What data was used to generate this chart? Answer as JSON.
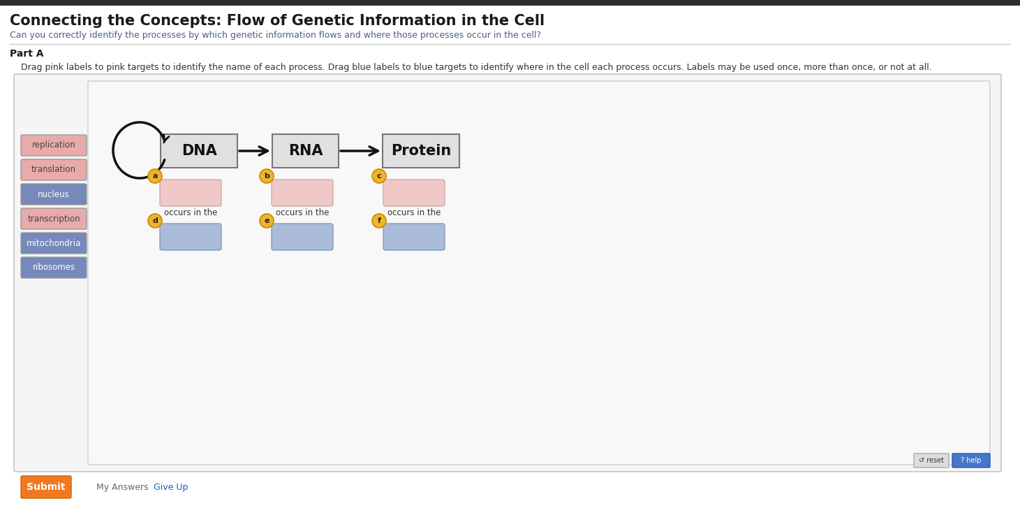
{
  "title": "Connecting the Concepts: Flow of Genetic Information in the Cell",
  "subtitle": "Can you correctly identify the processes by which genetic information flows and where those processes occur in the cell?",
  "part_label": "Part A",
  "instruction": "Drag pink labels to pink targets to identify the name of each process. Drag blue labels to blue targets to identify where in the cell each process occurs. Labels may be used once, more than once, or not at all.",
  "bg_color": "#ffffff",
  "title_color": "#1a1a1a",
  "subtitle_color": "#4a6080",
  "part_color": "#1a1a1a",
  "instruction_color": "#333333",
  "left_labels": [
    {
      "text": "replication",
      "color": "#e8aaaa",
      "text_color": "#444444"
    },
    {
      "text": "translation",
      "color": "#e8aaaa",
      "text_color": "#444444"
    },
    {
      "text": "nucleus",
      "color": "#7788bb",
      "text_color": "#ffffff"
    },
    {
      "text": "transcription",
      "color": "#e8aaaa",
      "text_color": "#444444"
    },
    {
      "text": "mitochondria",
      "color": "#7788bb",
      "text_color": "#ffffff"
    },
    {
      "text": "ribosomes",
      "color": "#7788bb",
      "text_color": "#ffffff"
    }
  ],
  "pink_box_color": "#f0c8c8",
  "pink_box_edge": "#ccaaaa",
  "blue_box_color": "#aabbd8",
  "blue_box_edge": "#8899bb",
  "submit_btn_color": "#f07820",
  "submit_text": "Submit",
  "my_answers_text": "My Answers",
  "give_up_text": "Give Up",
  "give_up_color": "#2255cc",
  "reset_text": "↺ reset",
  "help_text": "? help"
}
